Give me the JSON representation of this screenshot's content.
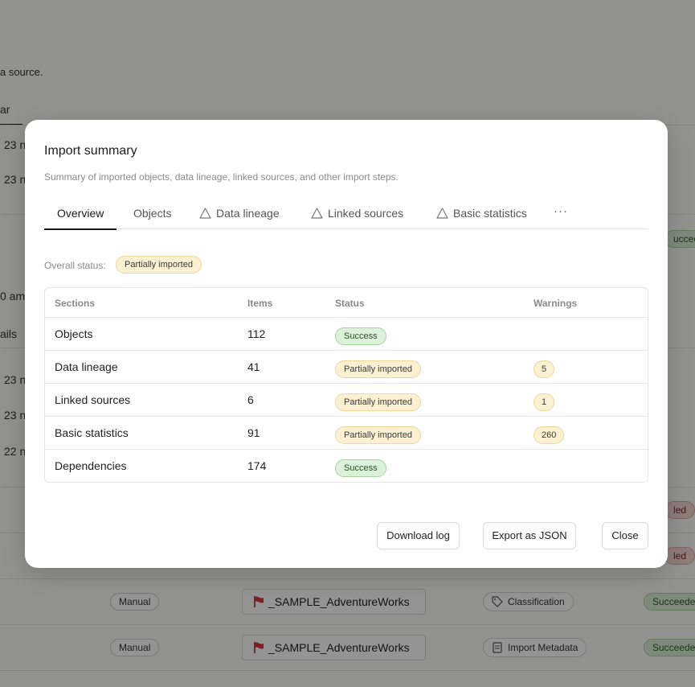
{
  "background": {
    "partial_texts": {
      "source_desc": "a source.",
      "tab_fragment": "ar",
      "time_1": "23 n",
      "time_2": "23 n",
      "time_am": "0 am",
      "details_fragment": "ails",
      "time_3": "23 n",
      "time_4": "23 n",
      "time_5": "22 n"
    },
    "status_fragments": {
      "succeeded_top": "ucceede",
      "failed_1": "led",
      "failed_2": "led"
    },
    "rows": [
      {
        "trigger": "Manual",
        "source": "_SAMPLE_AdventureWorks",
        "activity": "Classification",
        "status": "Succeede"
      },
      {
        "trigger": "Manual",
        "source": "_SAMPLE_AdventureWorks",
        "activity": "Import Metadata",
        "status": "Succeede"
      }
    ]
  },
  "modal": {
    "title": "Import summary",
    "subtitle": "Summary of imported objects, data lineage, linked sources, and other import steps.",
    "tabs": [
      {
        "label": "Overview",
        "warning": false
      },
      {
        "label": "Objects",
        "warning": false
      },
      {
        "label": "Data lineage",
        "warning": true
      },
      {
        "label": "Linked sources",
        "warning": true
      },
      {
        "label": "Basic statistics",
        "warning": true
      }
    ],
    "more_label": "···",
    "overall_status_label": "Overall status:",
    "overall_status_value": "Partially imported",
    "table": {
      "headers": [
        "Sections",
        "Items",
        "Status",
        "Warnings"
      ],
      "rows": [
        {
          "section": "Objects",
          "items": "112",
          "status": "Success",
          "status_type": "success",
          "warnings": ""
        },
        {
          "section": "Data lineage",
          "items": "41",
          "status": "Partially imported",
          "status_type": "partial",
          "warnings": "5"
        },
        {
          "section": "Linked sources",
          "items": "6",
          "status": "Partially imported",
          "status_type": "partial",
          "warnings": "1"
        },
        {
          "section": "Basic statistics",
          "items": "91",
          "status": "Partially imported",
          "status_type": "partial",
          "warnings": "260"
        },
        {
          "section": "Dependencies",
          "items": "174",
          "status": "Success",
          "status_type": "success",
          "warnings": ""
        }
      ]
    },
    "buttons": {
      "download": "Download log",
      "export": "Export as JSON",
      "close": "Close"
    }
  },
  "colors": {
    "success_bg": "#dcf1d9",
    "partial_bg": "#fbf0d2",
    "overlay": "rgba(0,0,0,0.42)"
  }
}
